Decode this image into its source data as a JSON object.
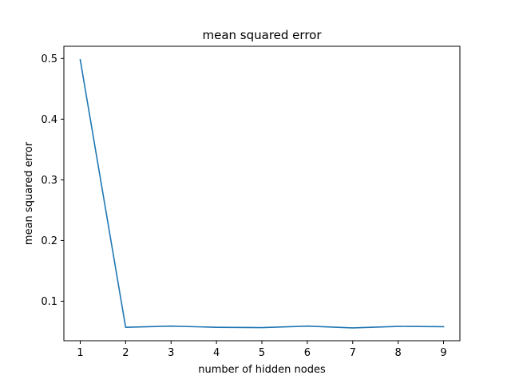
{
  "chart_data": {
    "type": "line",
    "title": "mean squared error",
    "xlabel": "number of hidden nodes",
    "ylabel": "mean squared error",
    "x": [
      1,
      2,
      3,
      4,
      5,
      6,
      7,
      8,
      9
    ],
    "series": [
      {
        "values": [
          0.498,
          0.057,
          0.059,
          0.057,
          0.0565,
          0.059,
          0.056,
          0.0585,
          0.058
        ],
        "color": "#1f77b4"
      }
    ],
    "xlim": [
      0.64,
      9.36
    ],
    "ylim": [
      0.0349,
      0.5201
    ],
    "xticks": [
      1,
      2,
      3,
      4,
      5,
      6,
      7,
      8,
      9
    ],
    "yticks": [
      0.1,
      0.2,
      0.3,
      0.4,
      0.5
    ],
    "ytick_labels": [
      "0.1",
      "0.2",
      "0.3",
      "0.4",
      "0.5"
    ],
    "grid": false
  }
}
